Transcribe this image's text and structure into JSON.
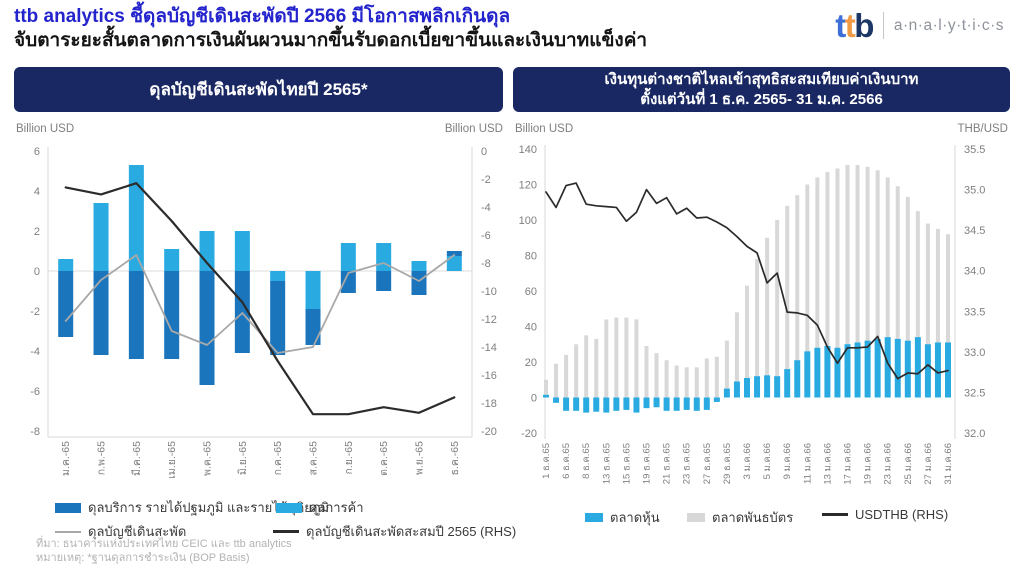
{
  "header": {
    "title_line1": "ttb analytics ชี้ดุลบัญชีเดินสะพัดปี 2566 มีโอกาสพลิกเกินดุล",
    "title_line2": "จับตาระยะสั้นตลาดการเงินผันผวนมากขึ้นรับดอกเบี้ยขาขึ้นและเงินบาทแข็งค่า",
    "logo": {
      "t1": "t",
      "t2": "t",
      "b": "b",
      "suffix": "a·n·a·l·y·t·i·c·s"
    }
  },
  "colors": {
    "header_text": "#2424CD",
    "panel_bg": "#192862",
    "light_blue": "#29ABE2",
    "dark_blue": "#1B75BC",
    "bond_gray": "#D8D8D8",
    "line_gray": "#A8A8A8",
    "line_black": "#2B2B2B",
    "axis_text": "#7F7F7F"
  },
  "chart_data": [
    {
      "type": "bar",
      "title": "ดุลบัญชีเดินสะพัดไทยปี 2565*",
      "left_axis": {
        "label": "Billion USD",
        "min": -8,
        "max": 6,
        "ticks": [
          "6",
          "4",
          "2",
          "0",
          "-2",
          "-4",
          "-6",
          "-8"
        ]
      },
      "right_axis": {
        "label": "Billion USD",
        "min": -20,
        "max": 0,
        "ticks": [
          "0",
          "-2",
          "-4",
          "-6",
          "-8",
          "-10",
          "-12",
          "-14",
          "-16",
          "-18",
          "-20"
        ]
      },
      "categories": [
        "ม.ค.-65",
        "ก.พ.-65",
        "มี.ค.-65",
        "เม.ย.-65",
        "พ.ค.-65",
        "มิ.ย.-65",
        "ก.ค.-65",
        "ส.ค.-65",
        "ก.ย.-65",
        "ต.ค.-65",
        "พ.ย.-65",
        "ธ.ค.-65"
      ],
      "grid": "zero-line-only",
      "legend_position": "bottom",
      "series": [
        {
          "name": "ดุลการค้า",
          "type": "bar",
          "axis": "left",
          "color": "#29ABE2",
          "values": [
            0.6,
            3.4,
            5.3,
            1.1,
            2.0,
            2.0,
            -0.5,
            -1.9,
            1.4,
            1.4,
            0.5,
            0.75
          ]
        },
        {
          "name": "ดุลบริการ รายได้ปฐมภูมิ และรายได้ทุติยภูมิ",
          "type": "bar",
          "axis": "left",
          "color": "#1B75BC",
          "values": [
            -3.3,
            -4.2,
            -4.4,
            -4.4,
            -5.7,
            -4.1,
            -3.7,
            -1.8,
            -1.1,
            -1.0,
            -1.2,
            0.25
          ]
        },
        {
          "name": "ดุลบัญชีเดินสะพัด",
          "type": "line",
          "axis": "left",
          "color": "#A8A8A8",
          "values": [
            -2.5,
            -0.45,
            0.8,
            -3.0,
            -3.7,
            -2.1,
            -4.1,
            -3.8,
            -0.1,
            0.4,
            -0.5,
            0.8
          ]
        },
        {
          "name": "ดุลบัญชีเดินสะพัดสะสมปี 2565 (RHS)",
          "type": "line",
          "axis": "right",
          "color": "#2B2B2B",
          "values": [
            -2.6,
            -3.1,
            -2.3,
            -5.0,
            -8.0,
            -10.8,
            -15.0,
            -18.8,
            -18.8,
            -18.3,
            -18.7,
            -17.6
          ]
        }
      ]
    },
    {
      "type": "bar",
      "title_line1": "เงินทุนต่างชาติไหลเข้าสุทธิสะสมเทียบค่าเงินบาท",
      "title_line2": "ตั้งแต่วันที่ 1 ธ.ค. 2565- 31 ม.ค. 2566",
      "left_axis": {
        "label": "Billion USD",
        "min": -20,
        "max": 140,
        "ticks": [
          "140",
          "120",
          "100",
          "80",
          "60",
          "40",
          "20",
          "0",
          "-20"
        ]
      },
      "right_axis": {
        "label": "THB/USD",
        "min": 32.0,
        "max": 35.5,
        "ticks": [
          "35.5",
          "35.0",
          "34.5",
          "34.0",
          "33.5",
          "33.0",
          "32.5",
          "32.0"
        ]
      },
      "tick_every": 2,
      "tick_labels": [
        "1 ธ.ค.65",
        "6 ธ.ค.65",
        "8 ธ.ค.65",
        "13 ธ.ค.65",
        "15 ธ.ค.65",
        "19 ธ.ค.65",
        "21 ธ.ค.65",
        "23 ธ.ค.65",
        "27 ธ.ค.65",
        "29 ธ.ค.65",
        "3 ม.ค.66",
        "5 ม.ค.66",
        "9 ม.ค.66",
        "11 ม.ค.66",
        "13 ม.ค.66",
        "17 ม.ค.66",
        "19 ม.ค.66",
        "23 ม.ค.66",
        "25 ม.ค.66",
        "27 ม.ค.66",
        "31 ม.ค.66"
      ],
      "series": [
        {
          "name": "ตลาดหุ้น",
          "type": "bar",
          "axis": "left",
          "color": "#29ABE2",
          "values": [
            1.5,
            -3,
            -7.5,
            -7.5,
            -8.5,
            -8,
            -8.5,
            -7.5,
            -7,
            -8.5,
            -6,
            -5.5,
            -7.5,
            -7.5,
            -7,
            -7.5,
            -7,
            -2.5,
            5,
            9,
            11,
            12,
            12.5,
            12,
            16,
            21,
            26,
            28,
            29,
            28,
            30,
            31,
            32,
            33,
            34,
            33,
            32,
            34,
            30,
            31,
            31
          ]
        },
        {
          "name": "ตลาดพันธบัตร",
          "type": "bar",
          "axis": "left",
          "color": "#D8D8D8",
          "values": [
            10,
            19,
            24,
            30,
            35,
            33,
            44,
            45,
            45,
            44,
            29,
            25,
            21,
            18,
            17,
            17,
            22,
            23,
            32,
            48,
            63,
            78,
            90,
            100,
            108,
            114,
            120,
            124,
            127,
            129,
            131,
            131,
            130,
            128,
            124,
            119,
            113,
            105,
            98,
            95,
            92
          ]
        },
        {
          "name": "USDTHB (RHS)",
          "type": "line",
          "axis": "right",
          "color": "#2B2B2B",
          "values": [
            34.97,
            34.78,
            35.05,
            35.08,
            34.82,
            34.8,
            34.79,
            34.78,
            34.61,
            34.72,
            35.0,
            34.83,
            34.9,
            34.7,
            34.77,
            34.65,
            34.66,
            34.6,
            34.53,
            34.42,
            34.3,
            34.22,
            33.85,
            33.97,
            33.49,
            33.48,
            33.45,
            33.33,
            33.06,
            32.86,
            33.05,
            33.05,
            33.06,
            33.19,
            32.86,
            32.67,
            32.74,
            32.73,
            32.84,
            32.74,
            32.77
          ]
        }
      ]
    }
  ],
  "footer": {
    "source": "ที่มา: ธนาคารแห่งประเทศไทย CEIC และ ttb analytics",
    "note": "หมายเหตุ: *ฐานดุลการชำระเงิน (BOP Basis)"
  }
}
